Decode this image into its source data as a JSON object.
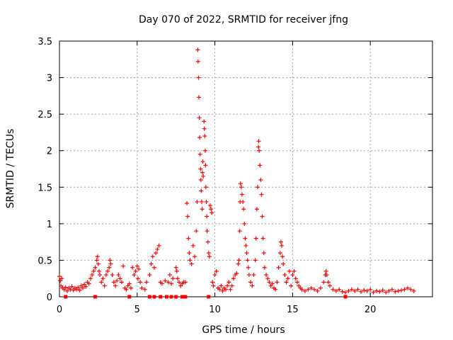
{
  "chart_data": {
    "type": "scatter",
    "title": "Day 070 of 2022, SRMTID for receiver jfng",
    "xlabel": "GPS time / hours",
    "ylabel": "SRMTID / TECUs",
    "xlim": [
      0,
      24
    ],
    "ylim": [
      0,
      3.5
    ],
    "x_ticks": [
      0,
      5,
      10,
      15,
      20
    ],
    "x_tick_labels": [
      "0",
      "5",
      "10",
      "15",
      "20"
    ],
    "y_ticks": [
      0,
      0.5,
      1,
      1.5,
      2,
      2.5,
      3,
      3.5
    ],
    "y_tick_labels": [
      "0",
      "0.5",
      "1",
      "1.5",
      "2",
      "2.5",
      "3",
      "3.5"
    ],
    "grid": true,
    "color": "#ff0000",
    "marker": "plus",
    "series": [
      {
        "name": "SRMTID",
        "points": [
          [
            0.0,
            0.28
          ],
          [
            0.05,
            0.22
          ],
          [
            0.1,
            0.15
          ],
          [
            0.15,
            0.25
          ],
          [
            0.2,
            0.12
          ],
          [
            0.3,
            0.1
          ],
          [
            0.4,
            0.13
          ],
          [
            0.5,
            0.08
          ],
          [
            0.6,
            0.12
          ],
          [
            0.7,
            0.1
          ],
          [
            0.8,
            0.14
          ],
          [
            0.9,
            0.09
          ],
          [
            1.0,
            0.12
          ],
          [
            1.1,
            0.1
          ],
          [
            1.2,
            0.13
          ],
          [
            1.3,
            0.09
          ],
          [
            1.4,
            0.15
          ],
          [
            1.5,
            0.12
          ],
          [
            1.6,
            0.17
          ],
          [
            1.7,
            0.14
          ],
          [
            1.8,
            0.2
          ],
          [
            1.9,
            0.18
          ],
          [
            2.0,
            0.25
          ],
          [
            2.1,
            0.3
          ],
          [
            2.2,
            0.35
          ],
          [
            2.3,
            0.4
          ],
          [
            2.4,
            0.5
          ],
          [
            2.45,
            0.55
          ],
          [
            2.5,
            0.45
          ],
          [
            2.55,
            0.35
          ],
          [
            2.6,
            0.3
          ],
          [
            2.7,
            0.2
          ],
          [
            2.8,
            0.25
          ],
          [
            2.9,
            0.15
          ],
          [
            3.0,
            0.3
          ],
          [
            3.1,
            0.35
          ],
          [
            3.2,
            0.4
          ],
          [
            3.25,
            0.5
          ],
          [
            3.3,
            0.45
          ],
          [
            3.4,
            0.3
          ],
          [
            3.5,
            0.2
          ],
          [
            3.6,
            0.15
          ],
          [
            3.7,
            0.22
          ],
          [
            3.8,
            0.3
          ],
          [
            3.9,
            0.25
          ],
          [
            4.0,
            0.2
          ],
          [
            4.1,
            0.42
          ],
          [
            4.2,
            0.12
          ],
          [
            4.3,
            0.1
          ],
          [
            4.4,
            0.15
          ],
          [
            4.5,
            0.18
          ],
          [
            4.6,
            0.12
          ],
          [
            4.7,
            0.4
          ],
          [
            4.8,
            0.3
          ],
          [
            4.9,
            0.35
          ],
          [
            5.0,
            0.42
          ],
          [
            5.05,
            0.25
          ],
          [
            5.1,
            0.38
          ],
          [
            5.2,
            0.2
          ],
          [
            5.3,
            0.12
          ],
          [
            5.5,
            0.1
          ],
          [
            5.6,
            0.2
          ],
          [
            5.8,
            0.3
          ],
          [
            5.9,
            0.45
          ],
          [
            6.0,
            0.55
          ],
          [
            6.1,
            0.4
          ],
          [
            6.2,
            0.6
          ],
          [
            6.3,
            0.65
          ],
          [
            6.4,
            0.7
          ],
          [
            6.5,
            0.2
          ],
          [
            6.6,
            0.18
          ],
          [
            6.8,
            0.22
          ],
          [
            7.0,
            0.2
          ],
          [
            7.1,
            0.3
          ],
          [
            7.2,
            0.18
          ],
          [
            7.3,
            0.25
          ],
          [
            7.5,
            0.4
          ],
          [
            7.55,
            0.35
          ],
          [
            7.6,
            0.25
          ],
          [
            7.7,
            0.2
          ],
          [
            7.8,
            0.15
          ],
          [
            7.9,
            0.18
          ],
          [
            8.0,
            0.2
          ],
          [
            8.1,
            0.2
          ],
          [
            8.2,
            1.28
          ],
          [
            8.25,
            1.1
          ],
          [
            8.3,
            0.8
          ],
          [
            8.35,
            0.6
          ],
          [
            8.4,
            0.5
          ],
          [
            8.5,
            0.45
          ],
          [
            8.6,
            0.7
          ],
          [
            8.7,
            0.55
          ],
          [
            8.8,
            0.9
          ],
          [
            8.85,
            1.3
          ],
          [
            8.9,
            3.38
          ],
          [
            8.92,
            3.22
          ],
          [
            8.95,
            3.0
          ],
          [
            8.97,
            2.73
          ],
          [
            9.0,
            2.45
          ],
          [
            9.02,
            2.18
          ],
          [
            9.05,
            1.95
          ],
          [
            9.08,
            1.75
          ],
          [
            9.1,
            1.6
          ],
          [
            9.12,
            1.45
          ],
          [
            9.15,
            1.3
          ],
          [
            9.18,
            1.2
          ],
          [
            9.2,
            1.7
          ],
          [
            9.22,
            1.85
          ],
          [
            9.25,
            1.65
          ],
          [
            9.3,
            2.4
          ],
          [
            9.32,
            2.3
          ],
          [
            9.35,
            2.2
          ],
          [
            9.38,
            2.0
          ],
          [
            9.4,
            1.8
          ],
          [
            9.42,
            1.5
          ],
          [
            9.45,
            1.3
          ],
          [
            9.48,
            1.1
          ],
          [
            9.5,
            0.9
          ],
          [
            9.55,
            0.75
          ],
          [
            9.6,
            0.6
          ],
          [
            9.65,
            0.55
          ],
          [
            9.7,
            1.25
          ],
          [
            9.75,
            1.2
          ],
          [
            9.8,
            1.15
          ],
          [
            9.85,
            0.2
          ],
          [
            9.9,
            0.15
          ],
          [
            10.0,
            0.3
          ],
          [
            10.1,
            0.35
          ],
          [
            10.2,
            0.12
          ],
          [
            10.3,
            0.1
          ],
          [
            10.4,
            0.15
          ],
          [
            10.5,
            0.08
          ],
          [
            10.6,
            0.12
          ],
          [
            10.7,
            0.1
          ],
          [
            10.8,
            0.15
          ],
          [
            10.9,
            0.2
          ],
          [
            11.0,
            0.1
          ],
          [
            11.1,
            0.15
          ],
          [
            11.2,
            0.25
          ],
          [
            11.3,
            0.3
          ],
          [
            11.4,
            0.32
          ],
          [
            11.5,
            0.45
          ],
          [
            11.55,
            0.5
          ],
          [
            11.6,
            0.9
          ],
          [
            11.62,
            1.3
          ],
          [
            11.65,
            1.55
          ],
          [
            11.7,
            1.5
          ],
          [
            11.75,
            1.4
          ],
          [
            11.8,
            1.3
          ],
          [
            11.85,
            1.2
          ],
          [
            11.9,
            1.0
          ],
          [
            11.95,
            0.8
          ],
          [
            12.0,
            0.7
          ],
          [
            12.05,
            0.6
          ],
          [
            12.1,
            0.5
          ],
          [
            12.15,
            0.4
          ],
          [
            12.2,
            0.3
          ],
          [
            12.3,
            0.2
          ],
          [
            12.4,
            0.15
          ],
          [
            12.5,
            0.3
          ],
          [
            12.6,
            0.5
          ],
          [
            12.65,
            0.8
          ],
          [
            12.7,
            1.2
          ],
          [
            12.75,
            1.5
          ],
          [
            12.8,
            2.05
          ],
          [
            12.82,
            2.13
          ],
          [
            12.85,
            2.0
          ],
          [
            12.9,
            1.8
          ],
          [
            12.95,
            1.6
          ],
          [
            13.0,
            1.4
          ],
          [
            13.05,
            1.1
          ],
          [
            13.1,
            0.8
          ],
          [
            13.15,
            0.6
          ],
          [
            13.2,
            0.4
          ],
          [
            13.3,
            0.3
          ],
          [
            13.4,
            0.25
          ],
          [
            13.5,
            0.2
          ],
          [
            13.6,
            0.15
          ],
          [
            13.7,
            0.18
          ],
          [
            13.8,
            0.12
          ],
          [
            13.9,
            0.1
          ],
          [
            14.0,
            0.2
          ],
          [
            14.1,
            0.4
          ],
          [
            14.2,
            0.6
          ],
          [
            14.25,
            0.75
          ],
          [
            14.3,
            0.7
          ],
          [
            14.35,
            0.55
          ],
          [
            14.4,
            0.45
          ],
          [
            14.5,
            0.3
          ],
          [
            14.6,
            0.2
          ],
          [
            14.7,
            0.25
          ],
          [
            14.8,
            0.35
          ],
          [
            14.9,
            0.15
          ],
          [
            15.0,
            0.3
          ],
          [
            15.1,
            0.35
          ],
          [
            15.2,
            0.25
          ],
          [
            15.3,
            0.2
          ],
          [
            15.4,
            0.15
          ],
          [
            15.5,
            0.12
          ],
          [
            15.6,
            0.1
          ],
          [
            15.8,
            0.08
          ],
          [
            16.0,
            0.1
          ],
          [
            16.2,
            0.12
          ],
          [
            16.4,
            0.1
          ],
          [
            16.6,
            0.08
          ],
          [
            16.8,
            0.12
          ],
          [
            17.0,
            0.2
          ],
          [
            17.1,
            0.3
          ],
          [
            17.15,
            0.35
          ],
          [
            17.2,
            0.3
          ],
          [
            17.3,
            0.2
          ],
          [
            17.4,
            0.15
          ],
          [
            17.6,
            0.1
          ],
          [
            17.8,
            0.08
          ],
          [
            18.0,
            0.1
          ],
          [
            18.2,
            0.07
          ],
          [
            18.4,
            0.06
          ],
          [
            18.6,
            0.08
          ],
          [
            18.8,
            0.1
          ],
          [
            19.0,
            0.08
          ],
          [
            19.2,
            0.1
          ],
          [
            19.4,
            0.07
          ],
          [
            19.6,
            0.09
          ],
          [
            19.8,
            0.08
          ],
          [
            20.0,
            0.1
          ],
          [
            20.2,
            0.06
          ],
          [
            20.4,
            0.08
          ],
          [
            20.6,
            0.07
          ],
          [
            20.8,
            0.09
          ],
          [
            21.0,
            0.06
          ],
          [
            21.2,
            0.08
          ],
          [
            21.4,
            0.1
          ],
          [
            21.6,
            0.07
          ],
          [
            21.8,
            0.08
          ],
          [
            22.0,
            0.09
          ],
          [
            22.2,
            0.1
          ],
          [
            22.4,
            0.12
          ],
          [
            22.6,
            0.1
          ],
          [
            22.8,
            0.08
          ]
        ]
      }
    ],
    "bottom_markers_x": [
      0.4,
      2.3,
      4.5,
      5.8,
      6.1,
      6.5,
      6.9,
      7.2,
      7.5,
      7.9,
      8.1,
      9.6,
      18.4
    ]
  }
}
